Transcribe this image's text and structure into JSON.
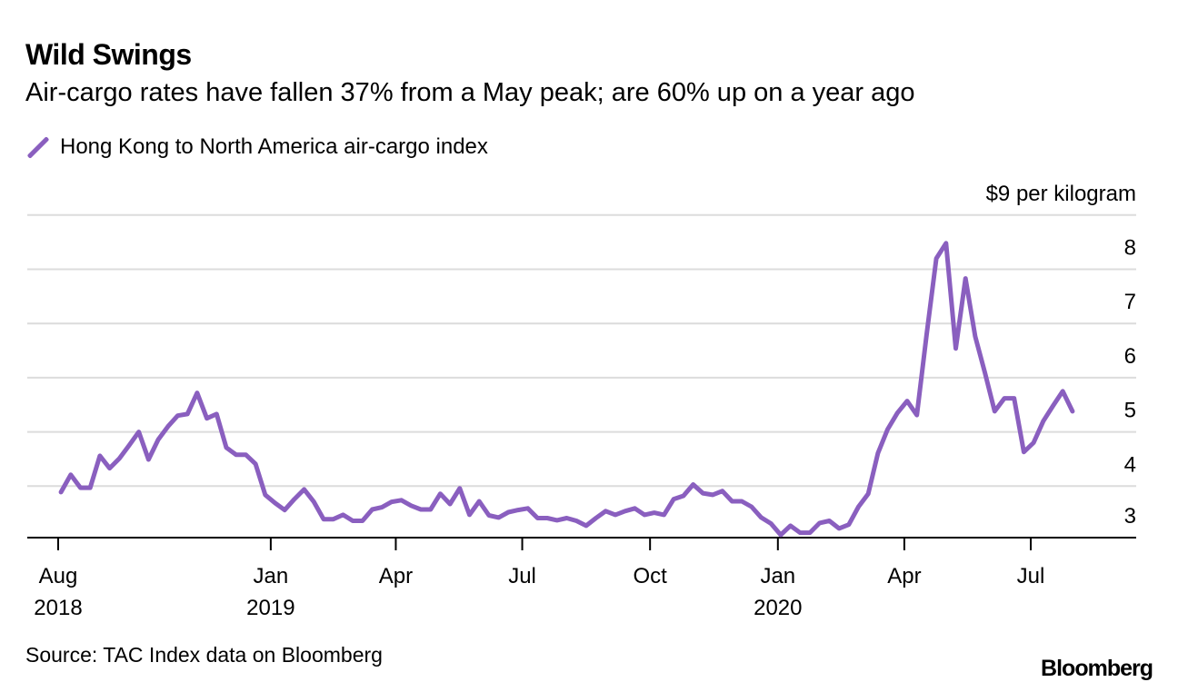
{
  "title": "Wild Swings",
  "subtitle": "Air-cargo rates have fallen 37% from a May peak; are 60% up on a year ago",
  "source": "Source: TAC Index data on Bloomberg",
  "logo": "Bloomberg",
  "colors": {
    "series": "#8a5fbf",
    "grid": "#dcdcdc",
    "axis": "#000000"
  },
  "chart_data": {
    "type": "line",
    "title": "Wild Swings",
    "subtitle": "Air-cargo rates have fallen 37% from a May peak; are 60% up on a year ago",
    "legend": "top-left",
    "grid": true,
    "ylim": [
      3.05,
      9
    ],
    "y_unit_label": "$9 per kilogram",
    "y_ticks": [
      {
        "value": 9,
        "label": "$9 per kilogram"
      },
      {
        "value": 8,
        "label": "8"
      },
      {
        "value": 7,
        "label": "7"
      },
      {
        "value": 6,
        "label": "6"
      },
      {
        "value": 5,
        "label": "5"
      },
      {
        "value": 4,
        "label": "4"
      },
      {
        "value": 3,
        "label": "3"
      }
    ],
    "x_ticks": [
      {
        "date": "2018-08-01",
        "label": "Aug",
        "year": "2018"
      },
      {
        "date": "2019-01-01",
        "label": "Jan",
        "year": "2019"
      },
      {
        "date": "2019-04-01",
        "label": "Apr",
        "year": ""
      },
      {
        "date": "2019-07-01",
        "label": "Jul",
        "year": ""
      },
      {
        "date": "2019-10-01",
        "label": "Oct",
        "year": ""
      },
      {
        "date": "2020-01-01",
        "label": "Jan",
        "year": "2020"
      },
      {
        "date": "2020-04-01",
        "label": "Apr",
        "year": ""
      },
      {
        "date": "2020-07-01",
        "label": "Jul",
        "year": ""
      }
    ],
    "series": [
      {
        "name": "Hong Kong to North America air-cargo index",
        "x": [
          "2018-08-03",
          "2018-08-10",
          "2018-08-17",
          "2018-08-24",
          "2018-08-31",
          "2018-09-07",
          "2018-09-14",
          "2018-09-21",
          "2018-09-28",
          "2018-10-05",
          "2018-10-12",
          "2018-10-19",
          "2018-10-26",
          "2018-11-02",
          "2018-11-09",
          "2018-11-16",
          "2018-11-23",
          "2018-11-30",
          "2018-12-07",
          "2018-12-14",
          "2018-12-21",
          "2018-12-28",
          "2019-01-04",
          "2019-01-11",
          "2019-01-18",
          "2019-01-25",
          "2019-02-01",
          "2019-02-08",
          "2019-02-15",
          "2019-02-22",
          "2019-03-01",
          "2019-03-08",
          "2019-03-15",
          "2019-03-22",
          "2019-03-29",
          "2019-04-05",
          "2019-04-12",
          "2019-04-19",
          "2019-04-26",
          "2019-05-03",
          "2019-05-10",
          "2019-05-17",
          "2019-05-24",
          "2019-05-31",
          "2019-06-07",
          "2019-06-14",
          "2019-06-21",
          "2019-06-28",
          "2019-07-05",
          "2019-07-12",
          "2019-07-19",
          "2019-07-26",
          "2019-08-02",
          "2019-08-09",
          "2019-08-16",
          "2019-08-23",
          "2019-08-30",
          "2019-09-06",
          "2019-09-13",
          "2019-09-20",
          "2019-09-27",
          "2019-10-04",
          "2019-10-11",
          "2019-10-18",
          "2019-10-25",
          "2019-11-01",
          "2019-11-08",
          "2019-11-15",
          "2019-11-22",
          "2019-11-29",
          "2019-12-06",
          "2019-12-13",
          "2019-12-20",
          "2019-12-27",
          "2020-01-03",
          "2020-01-10",
          "2020-01-17",
          "2020-01-24",
          "2020-01-31",
          "2020-02-07",
          "2020-02-14",
          "2020-02-21",
          "2020-02-28",
          "2020-03-06",
          "2020-03-13",
          "2020-03-20",
          "2020-03-27",
          "2020-04-03",
          "2020-04-10",
          "2020-04-17",
          "2020-04-24",
          "2020-05-01",
          "2020-05-08",
          "2020-05-15",
          "2020-05-22",
          "2020-05-29",
          "2020-06-05",
          "2020-06-12",
          "2020-06-19",
          "2020-06-26",
          "2020-07-03",
          "2020-07-10",
          "2020-07-17",
          "2020-07-24",
          "2020-07-31"
        ],
        "values": [
          3.89,
          4.21,
          3.97,
          3.97,
          4.56,
          4.33,
          4.51,
          4.75,
          5.0,
          4.49,
          4.86,
          5.1,
          5.3,
          5.33,
          5.72,
          5.25,
          5.33,
          4.71,
          4.58,
          4.58,
          4.41,
          3.84,
          3.69,
          3.56,
          3.76,
          3.94,
          3.71,
          3.39,
          3.39,
          3.47,
          3.36,
          3.36,
          3.57,
          3.61,
          3.71,
          3.74,
          3.64,
          3.57,
          3.57,
          3.86,
          3.67,
          3.96,
          3.47,
          3.72,
          3.46,
          3.42,
          3.52,
          3.56,
          3.59,
          3.41,
          3.41,
          3.37,
          3.41,
          3.36,
          3.27,
          3.41,
          3.54,
          3.47,
          3.54,
          3.59,
          3.47,
          3.51,
          3.47,
          3.76,
          3.82,
          4.03,
          3.87,
          3.84,
          3.91,
          3.72,
          3.72,
          3.62,
          3.42,
          3.31,
          3.1,
          3.27,
          3.14,
          3.14,
          3.32,
          3.36,
          3.22,
          3.29,
          3.62,
          3.86,
          4.61,
          5.05,
          5.35,
          5.57,
          5.31,
          6.79,
          8.2,
          8.48,
          6.54,
          7.83,
          6.76,
          6.09,
          5.38,
          5.62,
          5.62,
          4.63,
          4.8,
          5.2,
          5.48,
          5.75,
          5.38
        ]
      }
    ]
  }
}
